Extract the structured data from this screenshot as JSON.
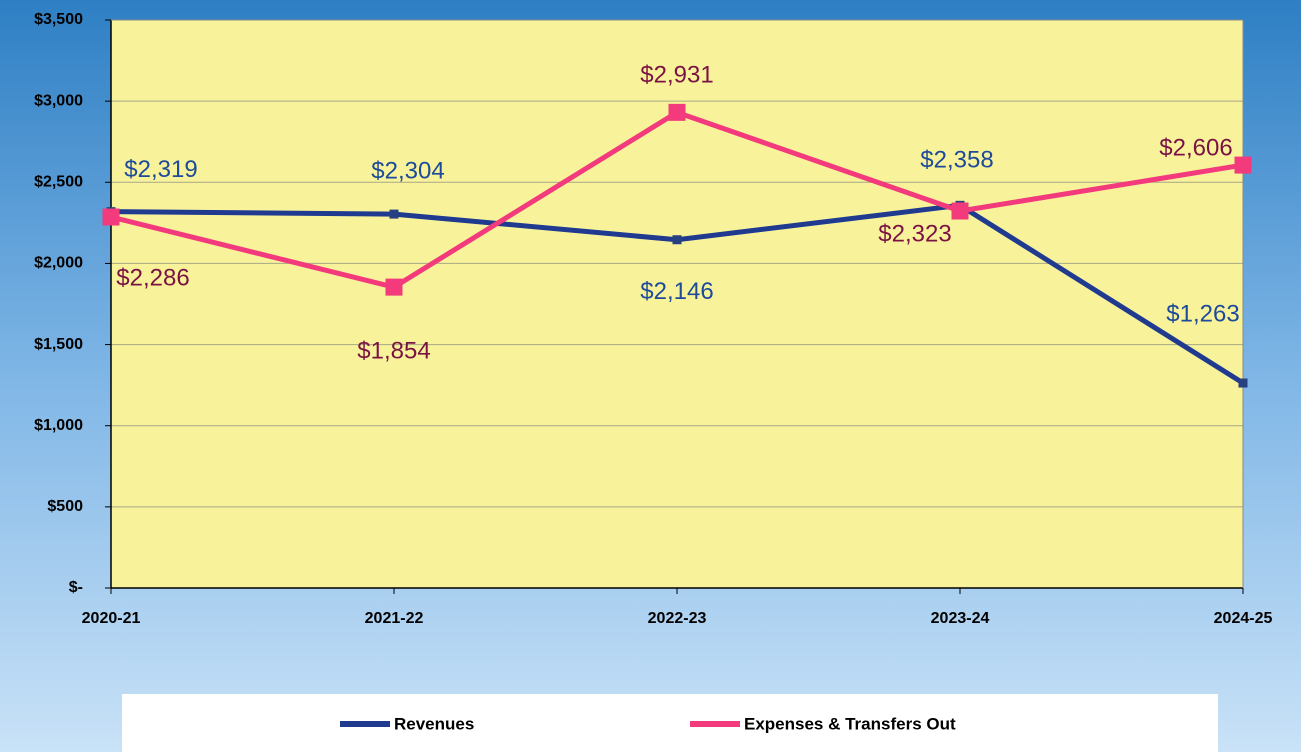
{
  "chart_data": {
    "type": "line",
    "categories": [
      "2020-21",
      "2021-22",
      "2022-23",
      "2023-24",
      "2024-25"
    ],
    "series": [
      {
        "name": "Revenues",
        "color": "#1f3a8f",
        "values": [
          2319,
          2304,
          2146,
          2358,
          1263
        ],
        "value_labels": [
          "$2,319",
          "$2,304",
          "$2,146",
          "$2,358",
          "$1,263"
        ]
      },
      {
        "name": "Expenses & Transfers Out",
        "color": "#f23a7c",
        "values": [
          2286,
          1854,
          2931,
          2323,
          2606
        ],
        "value_labels": [
          "$2,286",
          "$1,854",
          "$2,931",
          "$2,323",
          "$2,606"
        ]
      }
    ],
    "ylim": [
      0,
      3500
    ],
    "yticks": [
      {
        "value": 0,
        "label": "$-"
      },
      {
        "value": 500,
        "label": "$500"
      },
      {
        "value": 1000,
        "label": "$1,000"
      },
      {
        "value": 1500,
        "label": "$1,500"
      },
      {
        "value": 2000,
        "label": "$2,000"
      },
      {
        "value": 2500,
        "label": "$2,500"
      },
      {
        "value": 3000,
        "label": "$3,000"
      },
      {
        "value": 3500,
        "label": "$3,500"
      }
    ],
    "grid": true
  }
}
